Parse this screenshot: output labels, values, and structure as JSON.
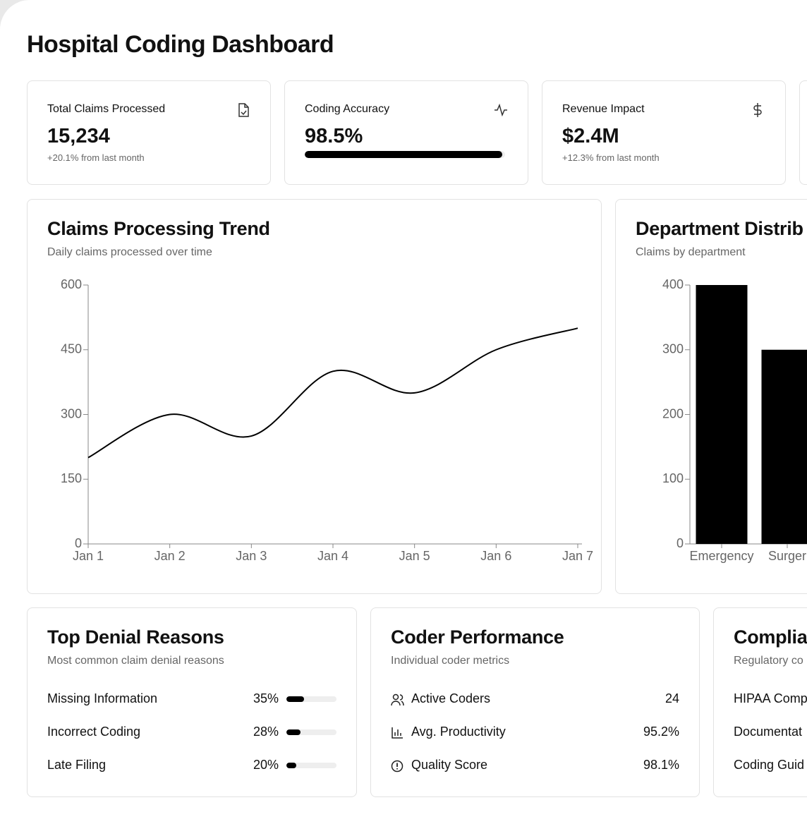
{
  "header": {
    "title": "Hospital Coding Dashboard"
  },
  "stats": [
    {
      "label": "Total Claims Processed",
      "value": "15,234",
      "note": "+20.1% from last month"
    },
    {
      "label": "Coding Accuracy",
      "value": "98.5%",
      "progress": 98.5
    },
    {
      "label": "Revenue Impact",
      "value": "$2.4M",
      "note": "+12.3% from last month"
    }
  ],
  "trend": {
    "title": "Claims Processing Trend",
    "subtitle": "Daily claims processed over time",
    "chart_data": {
      "type": "line",
      "categories": [
        "Jan 1",
        "Jan 2",
        "Jan 3",
        "Jan 4",
        "Jan 5",
        "Jan 6",
        "Jan 7"
      ],
      "series": [
        {
          "color": "#000000",
          "values": [
            200,
            300,
            250,
            400,
            350,
            450,
            500
          ]
        }
      ],
      "ylim": [
        0,
        600
      ],
      "yticks": [
        0,
        150,
        300,
        450,
        600
      ]
    }
  },
  "departments": {
    "title": "Department Distrib",
    "subtitle": "Claims by department",
    "chart_data": {
      "type": "bar",
      "categories": [
        "Emergency",
        "Surger"
      ],
      "values": [
        400,
        300
      ],
      "color": "#000000",
      "ylim": [
        0,
        400
      ],
      "yticks": [
        0,
        100,
        200,
        300,
        400
      ]
    }
  },
  "denials": {
    "title": "Top Denial Reasons",
    "subtitle": "Most common claim denial reasons",
    "rows": [
      {
        "label": "Missing Information",
        "value": 35,
        "value_label": "35%"
      },
      {
        "label": "Incorrect Coding",
        "value": 28,
        "value_label": "28%"
      },
      {
        "label": "Late Filing",
        "value": 20,
        "value_label": "20%"
      }
    ]
  },
  "coders": {
    "title": "Coder Performance",
    "subtitle": "Individual coder metrics",
    "rows": [
      {
        "label": "Active Coders",
        "value": "24"
      },
      {
        "label": "Avg. Productivity",
        "value": "95.2%"
      },
      {
        "label": "Quality Score",
        "value": "98.1%"
      }
    ]
  },
  "compliance": {
    "title": "Complia",
    "subtitle": "Regulatory co",
    "rows": [
      "HIPAA Comp",
      "Documentat",
      "Coding Guid"
    ]
  }
}
